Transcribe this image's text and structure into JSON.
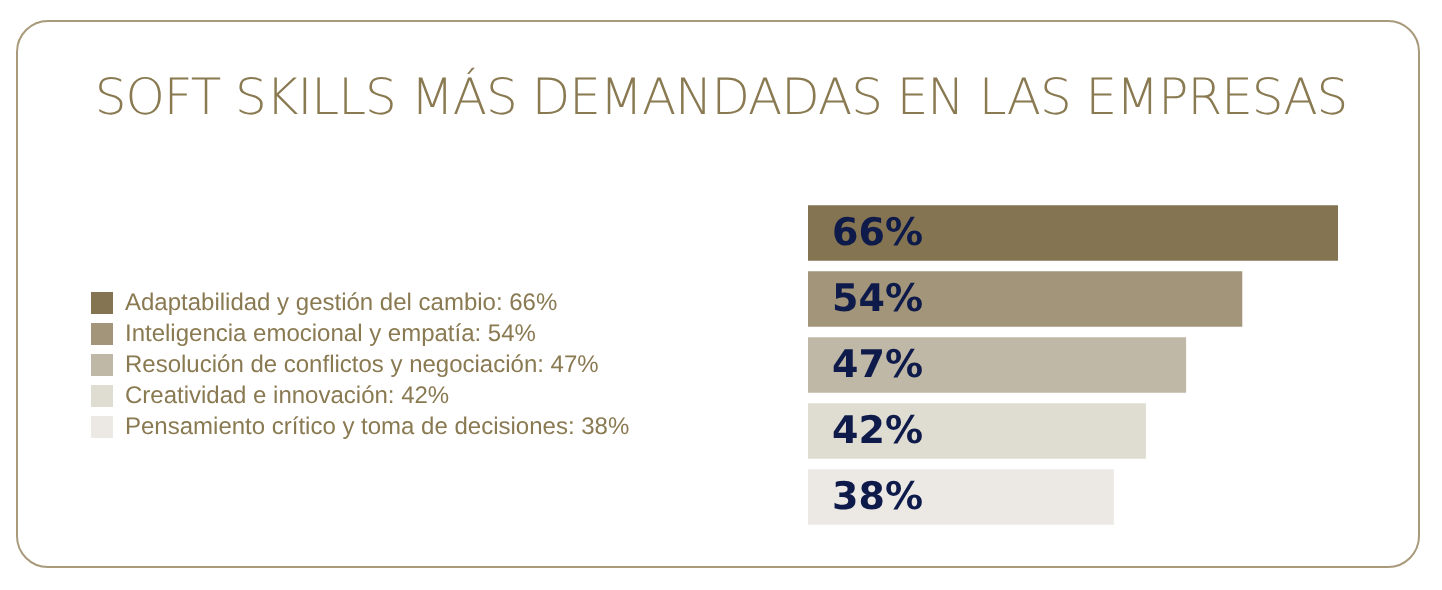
{
  "chart_data": {
    "type": "bar",
    "orientation": "horizontal",
    "title": "SOFT SKILLS MÁS DEMANDADAS EN LAS EMPRESAS",
    "categories": [
      null,
      null,
      null,
      null,
      null
    ],
    "series": [
      {
        "name": "Adaptabilidad y gestión del cambio: 66%",
        "color": "#857451",
        "values": [
          66,
          null,
          null,
          null,
          null
        ],
        "value_labels": [
          "66%",
          null,
          null,
          null,
          null
        ]
      },
      {
        "name": "Inteligencia emocional y empatía: 54%",
        "color": "#a29579",
        "values": [
          null,
          54,
          null,
          null,
          null
        ],
        "value_labels": [
          null,
          "54%",
          null,
          null,
          null
        ]
      },
      {
        "name": "Resolución de conflictos y negociación: 47%",
        "color": "#c0b8a6",
        "values": [
          null,
          null,
          47,
          null,
          null
        ],
        "value_labels": [
          null,
          null,
          "47%",
          null,
          null
        ]
      },
      {
        "name": "Creatividad e innovación: 42%",
        "color": "#dfdcd2",
        "values": [
          null,
          null,
          null,
          42,
          null
        ],
        "value_labels": [
          null,
          null,
          null,
          "42%",
          null
        ]
      },
      {
        "name": "Pensamiento crítico y toma de decisiones: 38%",
        "color": "#ece9e4",
        "values": [
          null,
          null,
          null,
          null,
          38
        ],
        "value_labels": [
          null,
          null,
          null,
          null,
          "38%"
        ]
      }
    ],
    "stacked": true,
    "legend": "left",
    "tick_labels": false
  }
}
